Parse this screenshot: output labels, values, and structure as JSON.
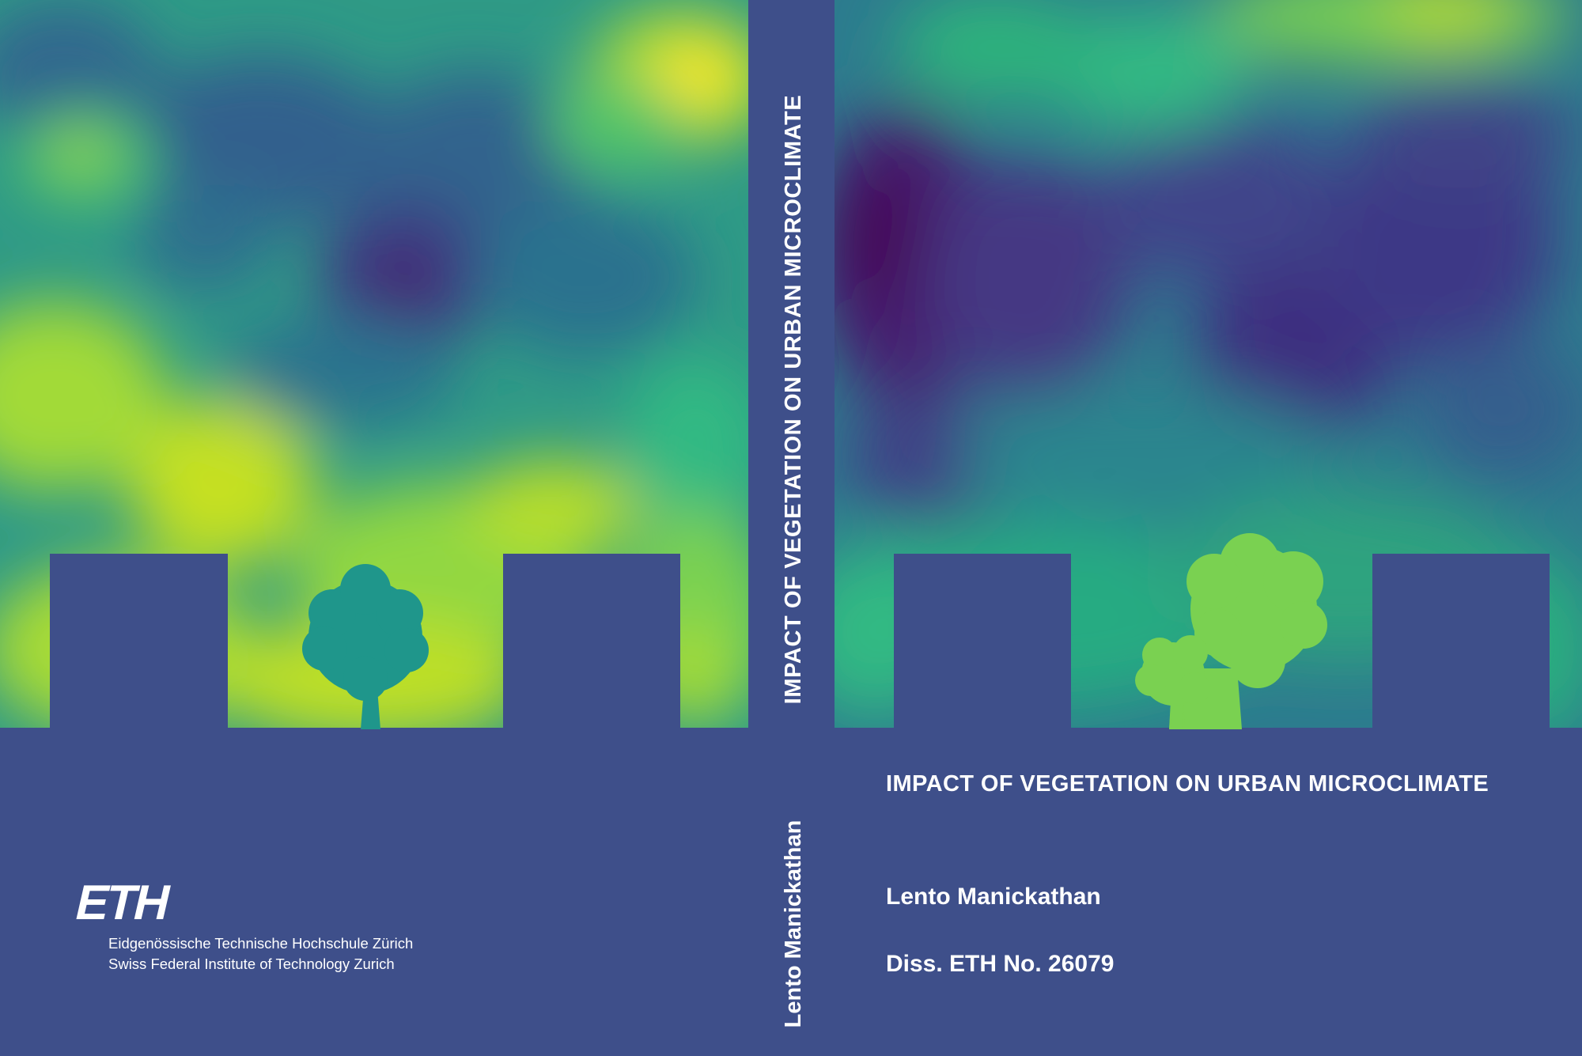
{
  "colors": {
    "navy": "#3e4f8a",
    "viridis_dark": "#440154",
    "viridis_purple": "#3e2f80",
    "viridis_blue": "#2f6b8e",
    "viridis_teal": "#22948b",
    "viridis_green": "#3dbb74",
    "viridis_lightgreen": "#7ad151",
    "viridis_yellowgreen": "#bddf26",
    "viridis_yellow": "#fde725",
    "tree_back": "#1f968b",
    "tree_front": "#7ad151",
    "text": "#ffffff"
  },
  "spine": {
    "title": "IMPACT OF VEGETATION ON URBAN MICROCLIMATE",
    "author": "Lento Manickathan"
  },
  "front": {
    "title": "IMPACT OF VEGETATION ON URBAN MICROCLIMATE",
    "author": "Lento Manickathan",
    "dissertation": "Diss. ETH No. 26079"
  },
  "back": {
    "logo_text": "ETH",
    "institution_de": "Eidgenössische Technische Hochschule Zürich",
    "institution_en": "Swiss Federal Institute of Technology Zurich"
  }
}
